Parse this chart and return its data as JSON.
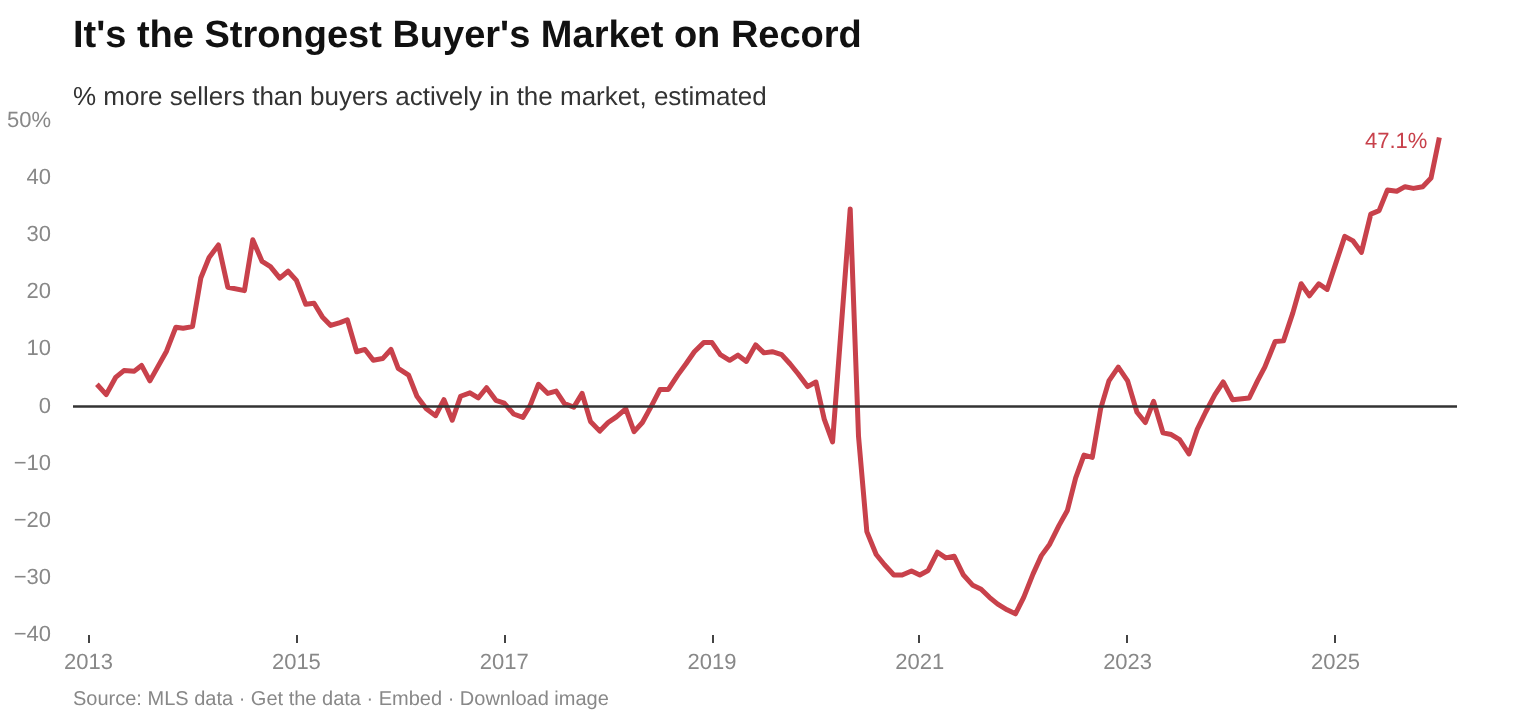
{
  "chart_data": {
    "type": "line",
    "title": "It's the Strongest Buyer's Market on Record",
    "subtitle": "% more sellers than buyers actively in the market, estimated",
    "x": [
      2013.08,
      2013.17,
      2013.26,
      2013.34,
      2013.44,
      2013.51,
      2013.59,
      2013.75,
      2013.84,
      2013.91,
      2014.0,
      2014.08,
      2014.16,
      2014.25,
      2014.34,
      2014.5,
      2014.58,
      2014.67,
      2014.75,
      2014.84,
      2014.92,
      2015.0,
      2015.09,
      2015.17,
      2015.25,
      2015.33,
      2015.42,
      2015.49,
      2015.58,
      2015.66,
      2015.74,
      2015.83,
      2015.91,
      2015.98,
      2016.08,
      2016.16,
      2016.25,
      2016.34,
      2016.42,
      2016.5,
      2016.58,
      2016.67,
      2016.75,
      2016.83,
      2016.92,
      2017.0,
      2017.09,
      2017.18,
      2017.25,
      2017.33,
      2017.42,
      2017.5,
      2017.58,
      2017.67,
      2017.75,
      2017.83,
      2017.92,
      2018.0,
      2018.08,
      2018.17,
      2018.25,
      2018.33,
      2018.42,
      2018.5,
      2018.58,
      2018.67,
      2018.75,
      2018.83,
      2018.92,
      2019.0,
      2019.08,
      2019.17,
      2019.25,
      2019.33,
      2019.42,
      2019.5,
      2019.58,
      2019.67,
      2019.75,
      2019.83,
      2019.92,
      2020.0,
      2020.08,
      2020.16,
      2020.33,
      2020.41,
      2020.49,
      2020.58,
      2020.66,
      2020.75,
      2020.83,
      2020.92,
      2021.0,
      2021.08,
      2021.17,
      2021.25,
      2021.33,
      2021.42,
      2021.51,
      2021.59,
      2021.67,
      2021.75,
      2021.84,
      2021.92,
      2022.0,
      2022.09,
      2022.17,
      2022.25,
      2022.34,
      2022.42,
      2022.5,
      2022.58,
      2022.66,
      2022.74,
      2022.82,
      2022.91,
      2023.0,
      2023.09,
      2023.17,
      2023.25,
      2023.34,
      2023.42,
      2023.5,
      2023.59,
      2023.67,
      2023.75,
      2023.84,
      2023.92,
      2024.01,
      2024.17,
      2024.25,
      2024.32,
      2024.42,
      2024.5,
      2024.59,
      2024.67,
      2024.75,
      2024.84,
      2024.92,
      2025.0,
      2025.09,
      2025.17,
      2025.25,
      2025.34,
      2025.42,
      2025.5,
      2025.59,
      2025.67,
      2025.75,
      2025.84,
      2025.92,
      2026.0
    ],
    "series": [
      {
        "color": "#c8414b",
        "values": [
          3.9,
          2.1,
          5.1,
          6.3,
          6.2,
          7.2,
          4.5,
          9.7,
          13.9,
          13.7,
          14.0,
          22.5,
          26.1,
          28.3,
          20.9,
          20.3,
          29.2,
          25.4,
          24.5,
          22.5,
          23.7,
          22.1,
          17.9,
          18.1,
          15.7,
          14.2,
          14.7,
          15.2,
          9.6,
          10.0,
          8.1,
          8.4,
          10.0,
          6.7,
          5.5,
          1.8,
          -0.4,
          -1.6,
          1.2,
          -2.4,
          1.8,
          2.4,
          1.5,
          3.3,
          1.1,
          0.6,
          -1.3,
          -1.9,
          0.2,
          3.9,
          2.3,
          2.7,
          0.5,
          -0.1,
          2.3,
          -2.6,
          -4.3,
          -2.8,
          -1.8,
          -0.4,
          -4.4,
          -2.8,
          0.2,
          3.0,
          3.0,
          5.5,
          7.5,
          9.6,
          11.2,
          11.2,
          9.1,
          8.1,
          9.0,
          7.9,
          10.8,
          9.4,
          9.6,
          9.1,
          7.5,
          5.7,
          3.5,
          4.3,
          -2.2,
          -6.2,
          34.6,
          -5.2,
          -21.9,
          -25.9,
          -27.7,
          -29.5,
          -29.5,
          -28.8,
          -29.5,
          -28.7,
          -25.5,
          -26.5,
          -26.2,
          -29.5,
          -31.3,
          -32.0,
          -33.4,
          -34.6,
          -35.6,
          -36.3,
          -33.4,
          -29.3,
          -26.1,
          -24.1,
          -20.8,
          -18.2,
          -12.5,
          -8.5,
          -8.9,
          -0.4,
          4.5,
          6.9,
          4.5,
          -1.0,
          -2.8,
          0.9,
          -4.6,
          -4.9,
          -5.8,
          -8.3,
          -4.0,
          -1.0,
          2.1,
          4.3,
          1.2,
          1.5,
          4.5,
          6.9,
          11.4,
          11.5,
          16.4,
          21.5,
          19.4,
          21.5,
          20.5,
          24.9,
          29.8,
          29.0,
          27.0,
          33.7,
          34.3,
          37.9,
          37.7,
          38.5,
          38.2,
          38.5,
          40.0,
          47.1
        ]
      }
    ],
    "xlim": [
      2012.85,
      2026.17
    ],
    "ylim": [
      -40,
      50
    ],
    "xticks": [
      2013,
      2015,
      2017,
      2019,
      2021,
      2023,
      2025
    ],
    "yticks": [
      {
        "value": -40,
        "label": "−40"
      },
      {
        "value": -30,
        "label": "−30"
      },
      {
        "value": -20,
        "label": "−20"
      },
      {
        "value": -10,
        "label": "−10"
      },
      0,
      10,
      20,
      30,
      40,
      {
        "value": 50,
        "label": "50%"
      }
    ],
    "ref_lines": [
      {
        "axis": "y",
        "value": 0,
        "color": "#333333"
      }
    ],
    "grid": false,
    "marker": "none",
    "line_style": "solid",
    "annotations": [
      {
        "text": "47.1%",
        "x": 2026.0,
        "y": 47.1
      },
      "Source: MLS data · Get the data · Embed · Download image"
    ]
  }
}
